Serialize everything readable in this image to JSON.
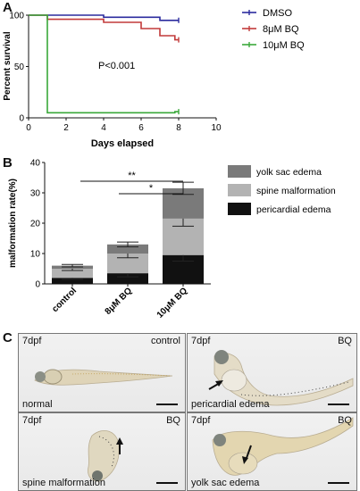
{
  "panels": {
    "a_label": "A",
    "b_label": "B",
    "c_label": "C"
  },
  "chart_data": [
    {
      "type": "line",
      "panel": "A",
      "xlabel": "Days elapsed",
      "ylabel": "Percent survival",
      "xlim": [
        0,
        10
      ],
      "ylim": [
        0,
        100
      ],
      "x_ticks": [
        "0",
        "2",
        "4",
        "6",
        "8",
        "10"
      ],
      "y_ticks": [
        "0",
        "50",
        "100"
      ],
      "annotation": "P<0.001",
      "legend_position": "right",
      "series": [
        {
          "name": "DMSO",
          "color": "#2b2b9e",
          "step": true,
          "points": [
            [
              0,
              100
            ],
            [
              4,
              100
            ],
            [
              4,
              98
            ],
            [
              7,
              98
            ],
            [
              7,
              95
            ],
            [
              8,
              95
            ]
          ]
        },
        {
          "name": "8μM BQ",
          "color": "#c23a3a",
          "step": true,
          "points": [
            [
              0,
              100
            ],
            [
              1,
              100
            ],
            [
              1,
              96
            ],
            [
              4,
              96
            ],
            [
              4,
              93
            ],
            [
              6,
              93
            ],
            [
              6,
              87
            ],
            [
              7,
              87
            ],
            [
              7,
              80
            ],
            [
              7.8,
              80
            ],
            [
              7.8,
              76
            ],
            [
              8,
              76
            ]
          ]
        },
        {
          "name": "10μM BQ",
          "color": "#3aa83a",
          "step": true,
          "points": [
            [
              0,
              100
            ],
            [
              1,
              100
            ],
            [
              1,
              5
            ],
            [
              7.8,
              5
            ],
            [
              7.8,
              6
            ],
            [
              8,
              6
            ]
          ]
        }
      ]
    },
    {
      "type": "bar",
      "stacked": true,
      "panel": "B",
      "ylabel": "malformation rate(%)",
      "ylim": [
        0,
        40
      ],
      "y_ticks": [
        "0",
        "10",
        "20",
        "30",
        "40"
      ],
      "categories": [
        "control",
        "8μM BQ",
        "10μM BQ"
      ],
      "series": [
        {
          "name": "pericardial edema",
          "color": "#111111",
          "values": [
            2.0,
            3.5,
            9.5
          ],
          "errors": [
            0.5,
            1.2,
            2.0
          ]
        },
        {
          "name": "spine malformation",
          "color": "#b3b3b3",
          "values": [
            3.0,
            6.5,
            12.0
          ],
          "errors": [
            0.6,
            1.4,
            2.5
          ]
        },
        {
          "name": "yolk sac edema",
          "color": "#7a7a7a",
          "values": [
            1.0,
            3.0,
            10.0
          ],
          "errors": [
            0.4,
            0.8,
            2.0
          ]
        }
      ],
      "significance": [
        {
          "from": 0,
          "to": 2,
          "label": "**"
        },
        {
          "from": 1,
          "to": 2,
          "label": "*"
        }
      ],
      "legend_position": "right"
    }
  ],
  "photos": [
    {
      "stage": "7dpf",
      "treatment": "control",
      "caption": "normal"
    },
    {
      "stage": "7dpf",
      "treatment": "BQ",
      "caption": "pericardial edema"
    },
    {
      "stage": "7dpf",
      "treatment": "BQ",
      "caption": "spine malformation"
    },
    {
      "stage": "7dpf",
      "treatment": "BQ",
      "caption": "yolk sac edema"
    }
  ]
}
